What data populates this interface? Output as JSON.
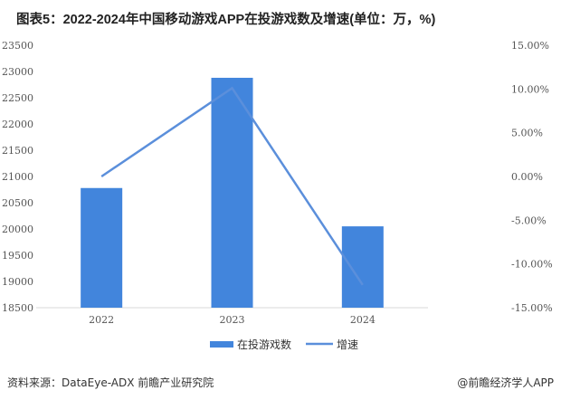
{
  "chart_data": {
    "type": "bar",
    "title": "图表5：2022-2024年中国移动游戏APP在投游戏数及增速(单位：万，%)",
    "categories": [
      "2022",
      "2023",
      "2024"
    ],
    "series": [
      {
        "name": "在投游戏数",
        "type": "bar",
        "axis": "left",
        "values": [
          20780,
          22880,
          20050
        ],
        "color": "#4285DC"
      },
      {
        "name": "增速",
        "type": "line",
        "axis": "right",
        "values": [
          0.0,
          10.1,
          -12.4
        ],
        "color": "#5B8FDB"
      }
    ],
    "ylim_left": [
      18500,
      23500
    ],
    "yticks_left": [
      "23500",
      "23000",
      "22500",
      "22000",
      "21500",
      "21000",
      "20500",
      "20000",
      "19500",
      "19000",
      "18500"
    ],
    "ylim_right": [
      -15,
      15
    ],
    "yticks_right": [
      "15.00%",
      "10.00%",
      "5.00%",
      "0.00%",
      "-5.00%",
      "-10.00%",
      "-15.00%"
    ],
    "grid": false,
    "legend_position": "bottom"
  },
  "footer": {
    "source": "资料来源：DataEye-ADX 前瞻产业研究院",
    "brand": "@前瞻经济学人APP"
  }
}
